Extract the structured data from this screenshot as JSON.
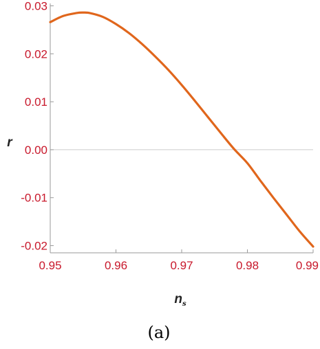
{
  "chart_data": {
    "type": "line",
    "xlabel": "n",
    "xlabel_sub": "s",
    "ylabel": "r",
    "caption": "(a)",
    "xlim": [
      0.95,
      0.99
    ],
    "ylim": [
      -0.0215,
      0.0305
    ],
    "x_ticks": [
      0.95,
      0.96,
      0.97,
      0.98,
      0.99
    ],
    "x_tick_labels": [
      "0.95",
      "0.96",
      "0.97",
      "0.98",
      "0.99"
    ],
    "y_ticks": [
      0.03,
      0.02,
      0.01,
      0.0,
      -0.01,
      -0.02
    ],
    "y_tick_labels": [
      "0.03",
      "0.02",
      "0.01",
      "0.00",
      "-0.01",
      "-0.02"
    ],
    "zero_line": true,
    "grid": false,
    "colors": {
      "series": "#e0661c",
      "ticks": "#c8182b",
      "axes": "#999999",
      "zero_line": "#cccccc"
    },
    "series": [
      {
        "x": [
          0.95,
          0.952,
          0.954,
          0.955,
          0.956,
          0.958,
          0.96,
          0.962,
          0.964,
          0.966,
          0.968,
          0.97,
          0.972,
          0.974,
          0.976,
          0.978,
          0.98,
          0.982,
          0.984,
          0.986,
          0.988,
          0.99
        ],
        "y": [
          0.0266,
          0.0279,
          0.0285,
          0.0286,
          0.0285,
          0.0277,
          0.0262,
          0.0243,
          0.022,
          0.0194,
          0.0166,
          0.0135,
          0.0102,
          0.0068,
          0.0034,
          0.0001,
          -0.0028,
          -0.0065,
          -0.0101,
          -0.0136,
          -0.0171,
          -0.0202
        ]
      }
    ]
  }
}
